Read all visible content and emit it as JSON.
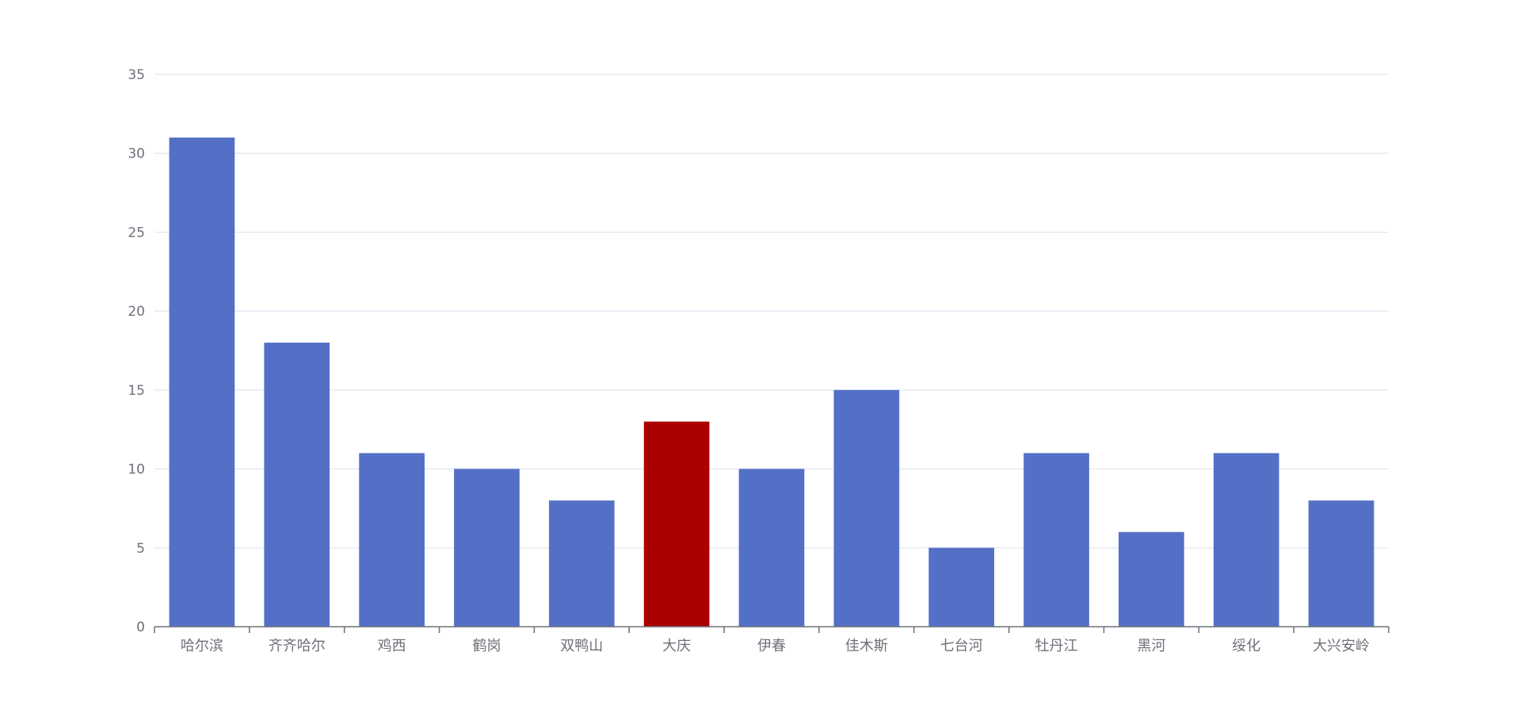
{
  "chart_data": {
    "type": "bar",
    "categories": [
      "哈尔滨",
      "齐齐哈尔",
      "鸡西",
      "鹤岗",
      "双鸭山",
      "大庆",
      "伊春",
      "佳木斯",
      "七台河",
      "牡丹江",
      "黑河",
      "绥化",
      "大兴安岭"
    ],
    "values": [
      31,
      18,
      11,
      10,
      8,
      13,
      10,
      15,
      5,
      11,
      6,
      11,
      8
    ],
    "highlight_category": "大庆",
    "ylim": [
      0,
      35
    ],
    "yticks": [
      0,
      5,
      10,
      15,
      20,
      25,
      30,
      35
    ],
    "grid": true,
    "legend": null,
    "colors": {
      "bar": "#5470c6",
      "highlight": "#aa0000",
      "grid": "#e0e6f1",
      "axis": "#6e7079",
      "text": "#6e7079"
    }
  }
}
